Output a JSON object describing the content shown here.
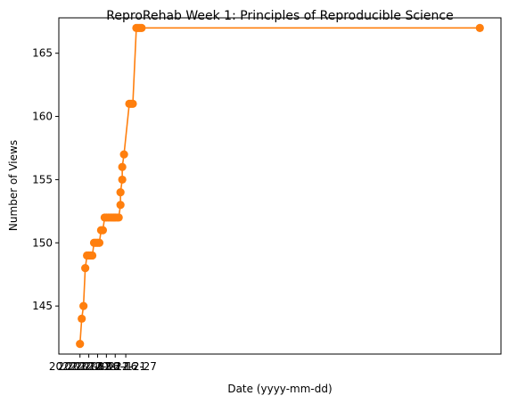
{
  "chart_data": {
    "type": "line",
    "title": "ReproRehab Week 1: Principles of Reproducible Science",
    "xlabel": "Date (yyyy-mm-dd)",
    "ylabel": "Number of Views",
    "ylim": [
      141.2,
      167.8
    ],
    "xlim": [
      "2022-11-19",
      "2023-07-28"
    ],
    "grid": false,
    "yticks": [
      145,
      150,
      155,
      160,
      165
    ],
    "xtick_labels": [
      {
        "x": "2022-12-01",
        "label": "2022-12-01"
      },
      {
        "x": "2022-12-06",
        "label": "2022-12-06"
      },
      {
        "x": "2022-12-11",
        "label": "2022-12-11"
      },
      {
        "x": "2022-12-16",
        "label": "2022-12-16"
      },
      {
        "x": "2022-12-21",
        "label": "2022-12-21"
      },
      {
        "x": "2022-12-27",
        "label": "2022-12-27"
      }
    ],
    "series": [
      {
        "color": "#ff7f0e",
        "points": [
          {
            "x": "2022-12-01",
            "y": 142
          },
          {
            "x": "2022-12-02",
            "y": 144
          },
          {
            "x": "2022-12-03",
            "y": 145
          },
          {
            "x": "2022-12-04",
            "y": 148
          },
          {
            "x": "2022-12-05",
            "y": 149
          },
          {
            "x": "2022-12-06",
            "y": 149
          },
          {
            "x": "2022-12-07",
            "y": 149
          },
          {
            "x": "2022-12-08",
            "y": 149
          },
          {
            "x": "2022-12-09",
            "y": 150
          },
          {
            "x": "2022-12-10",
            "y": 150
          },
          {
            "x": "2022-12-11",
            "y": 150
          },
          {
            "x": "2022-12-12",
            "y": 150
          },
          {
            "x": "2022-12-13",
            "y": 151
          },
          {
            "x": "2022-12-14",
            "y": 151
          },
          {
            "x": "2022-12-15",
            "y": 152
          },
          {
            "x": "2022-12-16",
            "y": 152
          },
          {
            "x": "2022-12-17",
            "y": 152
          },
          {
            "x": "2022-12-18",
            "y": 152
          },
          {
            "x": "2022-12-19",
            "y": 152
          },
          {
            "x": "2022-12-20",
            "y": 152
          },
          {
            "x": "2022-12-21",
            "y": 152
          },
          {
            "x": "2022-12-22",
            "y": 152
          },
          {
            "x": "2022-12-23",
            "y": 152
          },
          {
            "x": "2022-12-24",
            "y": 153
          },
          {
            "x": "2022-12-24",
            "y": 154
          },
          {
            "x": "2022-12-25",
            "y": 155
          },
          {
            "x": "2022-12-25",
            "y": 156
          },
          {
            "x": "2022-12-26",
            "y": 157
          },
          {
            "x": "2022-12-29",
            "y": 161
          },
          {
            "x": "2022-12-30",
            "y": 161
          },
          {
            "x": "2022-12-31",
            "y": 161
          },
          {
            "x": "2023-01-02",
            "y": 167
          },
          {
            "x": "2023-01-03",
            "y": 167
          },
          {
            "x": "2023-01-04",
            "y": 167
          },
          {
            "x": "2023-01-05",
            "y": 167
          },
          {
            "x": "2023-07-16",
            "y": 167
          }
        ]
      }
    ]
  }
}
